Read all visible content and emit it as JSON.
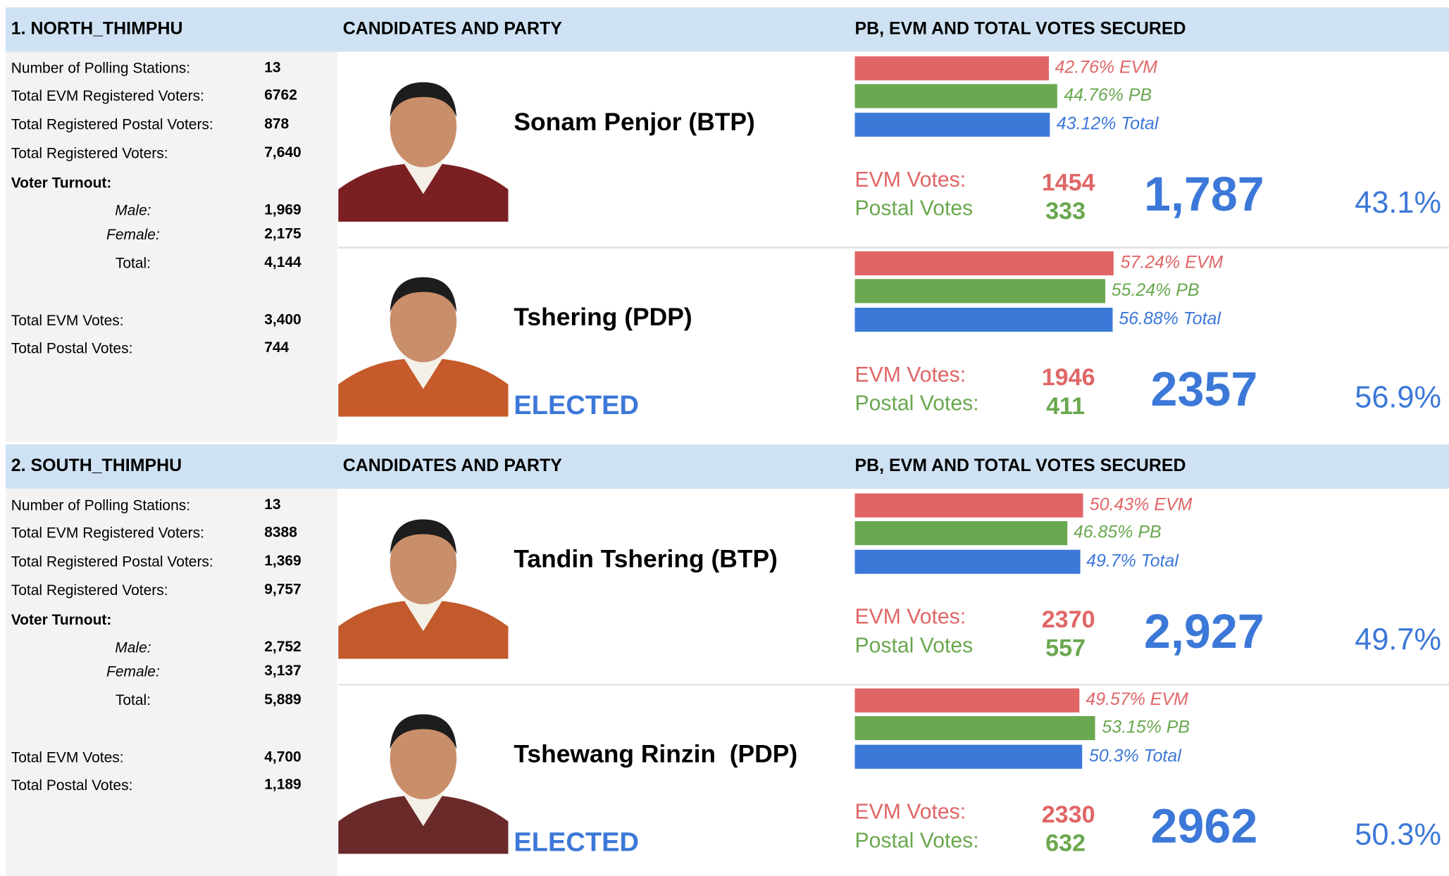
{
  "bar_colors": [
    "#e06666",
    "#6aa84f",
    "#3c78d8"
  ],
  "districts": [
    {
      "name": "1. NORTH_THIMPHU",
      "headers": [
        "CANDIDATES AND PARTY",
        "PB, EVM AND TOTAL VOTES SECURED"
      ],
      "stats": [
        {
          "label": "Number of Polling Stations:",
          "value": "13"
        },
        {
          "label": "Total EVM Registered Voters:",
          "value": "6762"
        },
        {
          "label": "Total Registered Postal Voters:",
          "value": "878"
        },
        {
          "label": "Total Registered Voters:",
          "value": "7,640"
        }
      ],
      "turnout": {
        "label": "Voter Turnout:",
        "rows": [
          {
            "label": "Male:",
            "value": "1,969"
          },
          {
            "label": "Female:",
            "value": "2,175"
          },
          {
            "label": "Total:",
            "value": "4,144"
          }
        ]
      },
      "votes": [
        {
          "label": "Total EVM Votes:",
          "value": "3,400"
        },
        {
          "label": "Total Postal Votes:",
          "value": "744"
        }
      ],
      "candidates": [
        {
          "name": "Sonam Penjor (BTP)",
          "bars": [
            {
              "value": 42.76,
              "label": "42.76% EVM"
            },
            {
              "value": 44.76,
              "label": "44.76% PB"
            },
            {
              "value": 43.12,
              "label": "43.12% Total"
            }
          ],
          "evm_label": "EVM Votes:",
          "evm_votes": 1454,
          "postal_label": "Postal Votes",
          "postal_votes": 333,
          "total": "1,787",
          "share": "43.1%"
        },
        {
          "name": "Tshering (PDP)",
          "status": "ELECTED",
          "bars": [
            {
              "value": 57.24,
              "label": "57.24% EVM"
            },
            {
              "value": 55.24,
              "label": "55.24% PB"
            },
            {
              "value": 56.88,
              "label": "56.88% Total"
            }
          ],
          "evm_label": "EVM Votes:",
          "evm_votes": 1946,
          "postal_label": "Postal Votes:",
          "postal_votes": 411,
          "total": "2357",
          "share": "56.9%"
        }
      ]
    },
    {
      "name": "2. SOUTH_THIMPHU",
      "headers": [
        "CANDIDATES AND PARTY",
        "PB, EVM AND TOTAL VOTES SECURED"
      ],
      "stats": [
        {
          "label": "Number of Polling Stations:",
          "value": "13"
        },
        {
          "label": "Total EVM Registered Voters:",
          "value": "8388"
        },
        {
          "label": "Total Registered Postal Voters:",
          "value": "1,369"
        },
        {
          "label": "Total Registered Voters:",
          "value": "9,757"
        }
      ],
      "turnout": {
        "label": "Voter Turnout:",
        "rows": [
          {
            "label": "Male:",
            "value": "2,752"
          },
          {
            "label": "Female:",
            "value": "3,137"
          },
          {
            "label": "Total:",
            "value": "5,889"
          }
        ]
      },
      "votes": [
        {
          "label": "Total EVM Votes:",
          "value": "4,700"
        },
        {
          "label": "Total Postal Votes:",
          "value": "1,189"
        }
      ],
      "candidates": [
        {
          "name": "Tandin Tshering (BTP)",
          "bars": [
            {
              "value": 50.43,
              "label": "50.43% EVM"
            },
            {
              "value": 46.85,
              "label": "46.85% PB"
            },
            {
              "value": 49.7,
              "label": "49.7% Total"
            }
          ],
          "evm_label": "EVM Votes:",
          "evm_votes": 2370,
          "postal_label": "Postal Votes",
          "postal_votes": 557,
          "total": "2,927",
          "share": "49.7%"
        },
        {
          "name": "Tshewang Rinzin  (PDP)",
          "status": "ELECTED",
          "bars": [
            {
              "value": 49.57,
              "label": "49.57% EVM"
            },
            {
              "value": 53.15,
              "label": "53.15% PB"
            },
            {
              "value": 50.3,
              "label": "50.3% Total"
            }
          ],
          "evm_label": "EVM Votes:",
          "evm_votes": 2330,
          "postal_label": "Postal Votes:",
          "postal_votes": 632,
          "total": "2962",
          "share": "50.3%"
        }
      ]
    }
  ]
}
